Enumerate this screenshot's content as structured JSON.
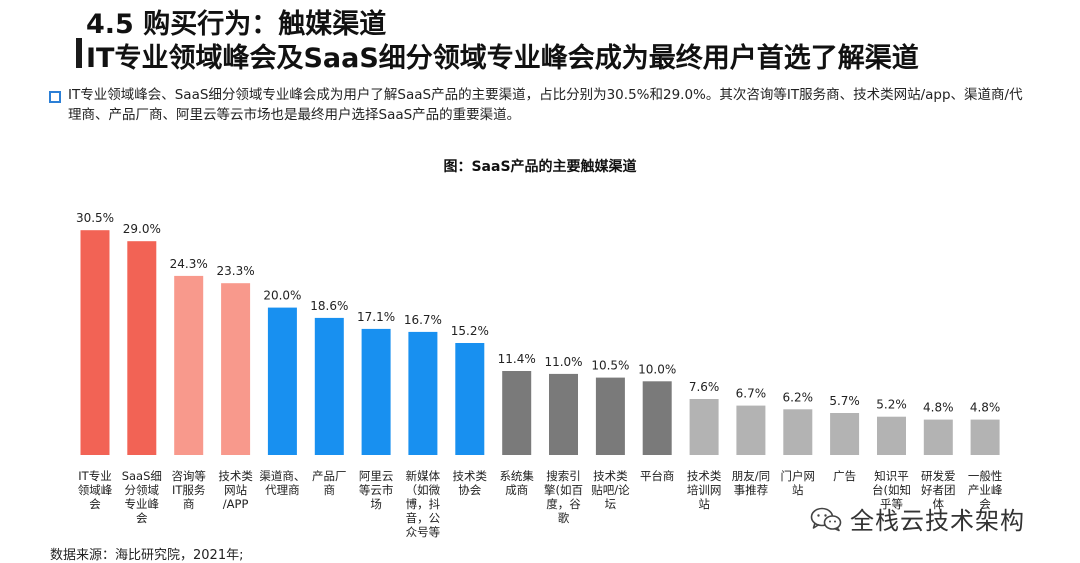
{
  "header": {
    "section_title": "4.5 购买行为：触媒渠道",
    "subtitle": "IT专业领域峰会及SaaS细分领域专业峰会成为最终用户首选了解渠道"
  },
  "summary": "IT专业领域峰会、SaaS细分领域专业峰会成为用户了解SaaS产品的主要渠道，占比分别为30.5%和29.0%。其次咨询等IT服务商、技术类网站/app、渠道商/代理商、产品厂商、阿里云等云市场也是最终用户选择SaaS产品的重要渠道。",
  "footer": {
    "source": "数据来源：海比研究院，2021年;",
    "watermark_account": "全栈云技术架构"
  },
  "colors": {
    "red": "#f26355",
    "pink": "#f8998c",
    "blue": "#1890f0",
    "dark_gray": "#7a7a7a",
    "light_gray": "#b3b3b3"
  },
  "chart_data": {
    "type": "bar",
    "title": "图：SaaS产品的主要触媒渠道",
    "ylim": [
      0,
      35
    ],
    "unit": "%",
    "categories": [
      "IT专业领域峰会",
      "SaaS细分领域专业峰会",
      "咨询等IT服务商",
      "技术类网站/APP",
      "渠道商、代理商",
      "产品厂商",
      "阿里云等云市场",
      "新媒体（如微博，抖音，公众号等",
      "技术类协会",
      "系统集成商",
      "搜索引擎(如百度，谷歌",
      "技术类贴吧/论坛",
      "平台商",
      "技术类培训网站",
      "朋友/同事推荐",
      "门户网站",
      "广告",
      "知识平台(如知乎等",
      "研发爱好者团体",
      "一般性产业峰会"
    ],
    "category_lines": [
      [
        "IT专业",
        "领域峰",
        "会"
      ],
      [
        "SaaS细",
        "分领域",
        "专业峰",
        "会"
      ],
      [
        "咨询等",
        "IT服务",
        "商"
      ],
      [
        "技术类",
        "网站",
        "/APP"
      ],
      [
        "渠道商、",
        "代理商"
      ],
      [
        "产品厂",
        "商"
      ],
      [
        "阿里云",
        "等云市",
        "场"
      ],
      [
        "新媒体",
        "（如微",
        "博，抖",
        "音，公",
        "众号等"
      ],
      [
        "技术类",
        "协会"
      ],
      [
        "系统集",
        "成商"
      ],
      [
        "搜索引",
        "擎(如百",
        "度，谷",
        "歌"
      ],
      [
        "技术类",
        "贴吧/论",
        "坛"
      ],
      [
        "平台商"
      ],
      [
        "技术类",
        "培训网",
        "站"
      ],
      [
        "朋友/同",
        "事推荐"
      ],
      [
        "门户网",
        "站"
      ],
      [
        "广告"
      ],
      [
        "知识平",
        "台(如知",
        "乎等"
      ],
      [
        "研发爱",
        "好者团",
        "体"
      ],
      [
        "一般性",
        "产业峰",
        "会"
      ]
    ],
    "values": [
      30.5,
      29.0,
      24.3,
      23.3,
      20.0,
      18.6,
      17.1,
      16.7,
      15.2,
      11.4,
      11.0,
      10.5,
      10.0,
      7.6,
      6.7,
      6.2,
      5.7,
      5.2,
      4.8,
      4.8
    ],
    "value_labels": [
      "30.5%",
      "29.0%",
      "24.3%",
      "23.3%",
      "20.0%",
      "18.6%",
      "17.1%",
      "16.7%",
      "15.2%",
      "11.4%",
      "11.0%",
      "10.5%",
      "10.0%",
      "7.6%",
      "6.7%",
      "6.2%",
      "5.7%",
      "5.2%",
      "4.8%",
      "4.8%"
    ],
    "bar_colors": [
      "red",
      "red",
      "pink",
      "pink",
      "blue",
      "blue",
      "blue",
      "blue",
      "blue",
      "dark_gray",
      "dark_gray",
      "dark_gray",
      "dark_gray",
      "light_gray",
      "light_gray",
      "light_gray",
      "light_gray",
      "light_gray",
      "light_gray",
      "light_gray"
    ]
  }
}
